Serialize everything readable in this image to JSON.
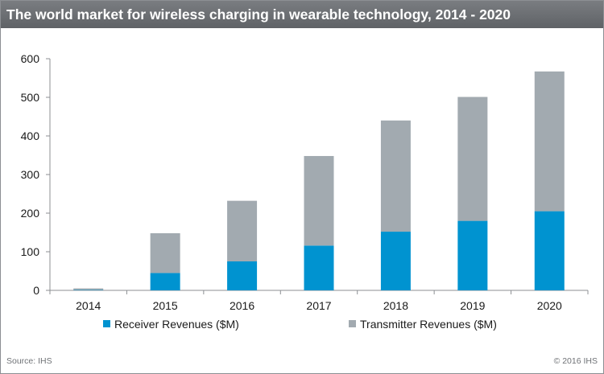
{
  "header": {
    "title": "The world market for wireless charging in wearable technology, 2014 - 2020"
  },
  "footer": {
    "source": "Source: IHS",
    "copyright": "© 2016 IHS"
  },
  "colors": {
    "receiver": "#0093d0",
    "transmitter": "#a2aab0",
    "title_bar": "#6b6e72",
    "axis": "#8c8f93"
  },
  "chart_data": {
    "type": "bar",
    "stacked": true,
    "title": "The world market for wireless charging in wearable technology, 2014 - 2020",
    "xlabel": "",
    "ylabel": "",
    "categories": [
      "2014",
      "2015",
      "2016",
      "2017",
      "2018",
      "2019",
      "2020"
    ],
    "series": [
      {
        "name": "Receiver Revenues ($M)",
        "values": [
          1,
          45,
          75,
          116,
          152,
          180,
          205
        ]
      },
      {
        "name": "Transmitter Revenues ($M)",
        "values": [
          4,
          103,
          157,
          232,
          288,
          321,
          362
        ]
      }
    ],
    "ylim": [
      0,
      600
    ],
    "yticks": [
      0,
      100,
      200,
      300,
      400,
      500,
      600
    ],
    "grid": false,
    "legend": "bottom"
  }
}
